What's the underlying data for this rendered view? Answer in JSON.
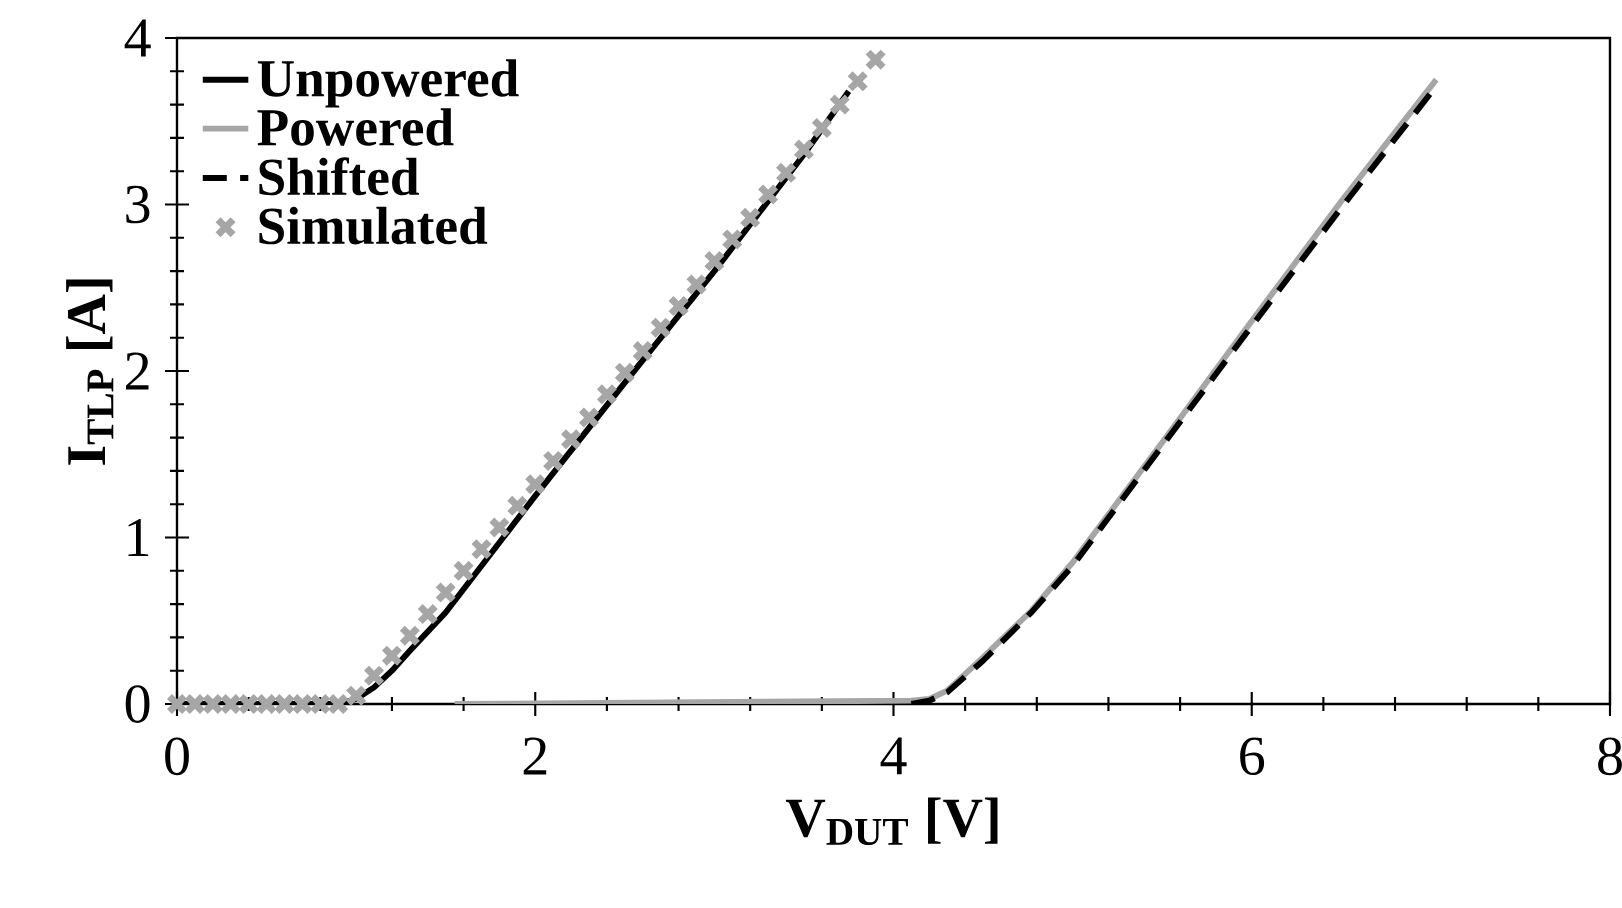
{
  "chart_data": {
    "type": "line",
    "xlabel": "V$_{DUT}$ [V]",
    "ylabel": "I$_{TLP}$ [A]",
    "xlim": [
      0,
      8
    ],
    "ylim": [
      0,
      4
    ],
    "xticks": [
      0,
      2,
      4,
      6,
      8
    ],
    "yticks": [
      0,
      1,
      2,
      3,
      4
    ],
    "legend": "top left",
    "grid": false,
    "series": [
      {
        "name": "Unpowered",
        "color": "#000000",
        "line_style": "solid",
        "marker": "none",
        "x": [
          0,
          0.9,
          1.0,
          1.1,
          1.2,
          1.3,
          1.5,
          2.0,
          2.5,
          3.0,
          3.5,
          3.75
        ],
        "values": [
          0,
          0,
          0.03,
          0.1,
          0.2,
          0.32,
          0.55,
          1.25,
          1.93,
          2.6,
          3.3,
          3.68
        ]
      },
      {
        "name": "Powered",
        "color": "#a6a6a6",
        "line_style": "solid",
        "marker": "none",
        "x": [
          1.55,
          4.1,
          4.2,
          4.3,
          4.5,
          4.77,
          5.0,
          5.5,
          6.0,
          6.5,
          7.03
        ],
        "values": [
          0,
          0.02,
          0.03,
          0.08,
          0.28,
          0.56,
          0.85,
          1.57,
          2.3,
          3.02,
          3.75
        ]
      },
      {
        "name": "Shifted",
        "color": "#000000",
        "line_style": "dashed",
        "marker": "none",
        "x": [
          4.1,
          4.2,
          4.3,
          4.5,
          4.77,
          5.0,
          5.5,
          6.0,
          6.5,
          7.0
        ],
        "values": [
          0,
          0.02,
          0.07,
          0.26,
          0.55,
          0.83,
          1.55,
          2.27,
          2.98,
          3.67
        ]
      },
      {
        "name": "Simulated",
        "type": "scatter",
        "color": "#a6a6a6",
        "marker": "cross",
        "x": [
          0,
          0.1,
          0.2,
          0.3,
          0.4,
          0.5,
          0.6,
          0.7,
          0.8,
          0.9,
          1.0,
          1.1,
          1.2,
          1.3,
          1.4,
          1.5,
          1.6,
          1.7,
          1.8,
          1.9,
          2.0,
          2.1,
          2.2,
          2.3,
          2.4,
          2.5,
          2.6,
          2.7,
          2.8,
          2.9,
          3.0,
          3.1,
          3.2,
          3.3,
          3.4,
          3.5,
          3.6,
          3.7,
          3.8,
          3.9
        ],
        "values": [
          0,
          0,
          0,
          0,
          0,
          0,
          0,
          0,
          0,
          0,
          0.05,
          0.17,
          0.29,
          0.41,
          0.54,
          0.67,
          0.8,
          0.93,
          1.06,
          1.19,
          1.32,
          1.46,
          1.59,
          1.72,
          1.86,
          1.99,
          2.12,
          2.26,
          2.39,
          2.52,
          2.66,
          2.79,
          2.92,
          3.06,
          3.19,
          3.33,
          3.46,
          3.6,
          3.74,
          3.87
        ]
      }
    ]
  }
}
